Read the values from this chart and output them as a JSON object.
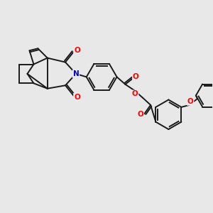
{
  "background_color": "#e8e8e8",
  "bond_color": "#1a1a1a",
  "bond_width": 1.4,
  "atom_colors": {
    "O": "#ff0000",
    "N": "#0000cd",
    "C": "#1a1a1a"
  },
  "figsize": [
    3.0,
    3.0
  ],
  "dpi": 100,
  "xlim": [
    0,
    10
  ],
  "ylim": [
    0,
    10
  ]
}
